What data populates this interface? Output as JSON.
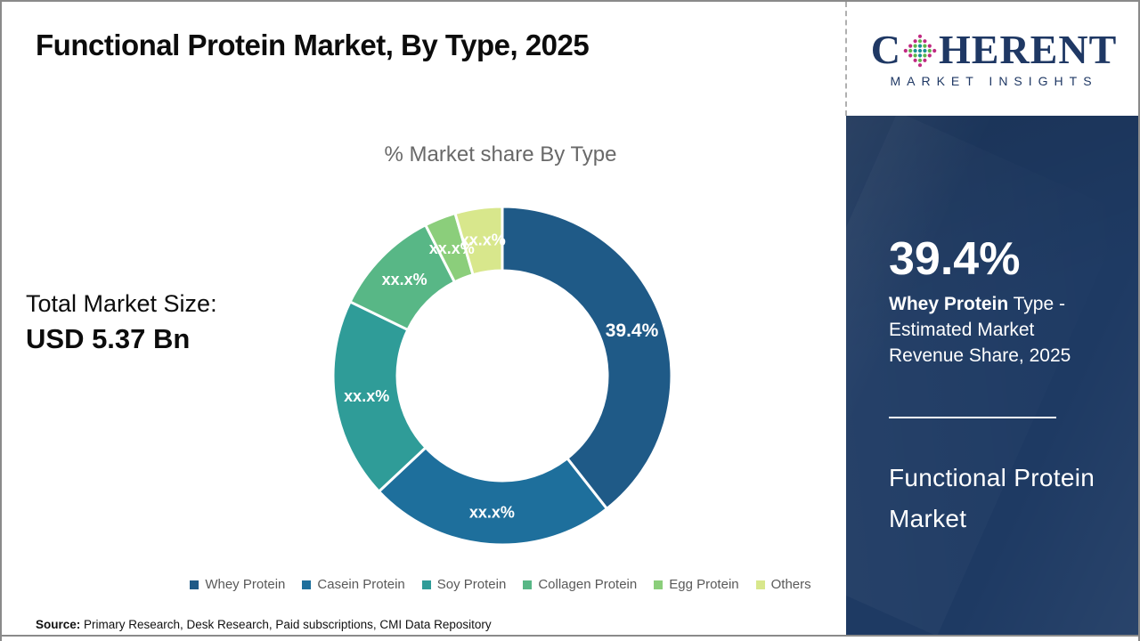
{
  "header": {
    "title": "Functional Protein Market, By Type, 2025"
  },
  "logo": {
    "name_start": "C",
    "name_end": "HERENT",
    "subtitle": "MARKET INSIGHTS",
    "brand_color": "#1F3864",
    "globe_colors": {
      "inner": "#1A8F96",
      "middle": "#5CB64A",
      "outer": "#C12A83"
    }
  },
  "chart_data": {
    "type": "pie",
    "donut": true,
    "title": "% Market share By Type",
    "legend_position": "bottom",
    "slices": [
      {
        "name": "Whey Protein",
        "value": 39.4,
        "label": "39.4%",
        "color": "#1F5A87"
      },
      {
        "name": "Casein Protein",
        "value": 23.6,
        "label": "xx.x%",
        "color": "#1E6F9C"
      },
      {
        "name": "Soy Protein",
        "value": 19.2,
        "label": "xx.x%",
        "color": "#2F9C98"
      },
      {
        "name": "Collagen Protein",
        "value": 10.3,
        "label": "xx.x%",
        "color": "#58B786"
      },
      {
        "name": "Egg Protein",
        "value": 3.0,
        "label": "xx.x%",
        "color": "#8BCE7B"
      },
      {
        "name": "Others",
        "value": 4.5,
        "label": "xx.x%",
        "color": "#D8E78C"
      }
    ]
  },
  "total_market": {
    "label": "Total Market Size:",
    "value": "USD 5.37 Bn"
  },
  "sidebar": {
    "stat_value": "39.4%",
    "stat_desc_bold": "Whey Protein",
    "stat_desc_rest": " Type - Estimated Market Revenue Share, 2025",
    "product_title": "Functional Protein Market",
    "background_color": "#1E3A63"
  },
  "source": {
    "label": "Source:",
    "text": " Primary Research, Desk Research, Paid subscriptions, CMI Data Repository"
  }
}
